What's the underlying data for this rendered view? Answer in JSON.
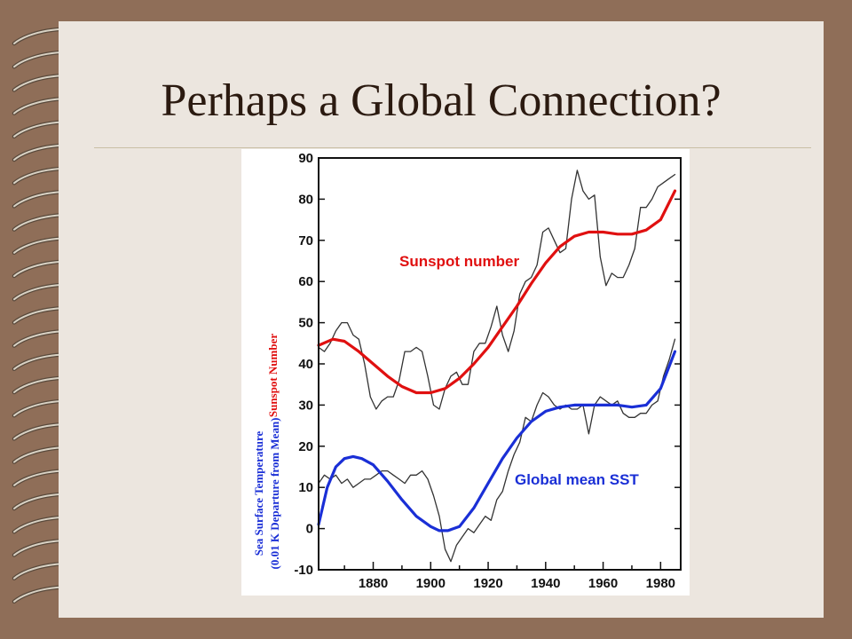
{
  "slide": {
    "title": "Perhaps a Global Connection?"
  },
  "colors": {
    "background": "#8f6e58",
    "slide": "#ece6df",
    "sunspot_smooth": "#e01010",
    "sst_smooth": "#1a2fd6",
    "raw": "#333333"
  },
  "chart_data": {
    "type": "line",
    "title": "",
    "xlabel": "",
    "ylabel_top": "Sunspot Number",
    "ylabel_bottom_line1": "Sea Surface Temperature",
    "ylabel_bottom_line2": "(0.01 K Departure from Mean)",
    "xlim": [
      1861,
      1987
    ],
    "ylim": [
      -10,
      90
    ],
    "xticks": [
      1880,
      1900,
      1920,
      1940,
      1960,
      1980
    ],
    "yticks": [
      -10,
      0,
      10,
      20,
      30,
      40,
      50,
      60,
      70,
      80,
      90
    ],
    "grid": false,
    "annotations": [
      {
        "text": "Sunspot number",
        "color": "#e01010"
      },
      {
        "text": "Global mean SST",
        "color": "#1a2fd6"
      }
    ],
    "series": [
      {
        "name": "Sunspot number",
        "style": "smooth",
        "color": "#e01010",
        "x": [
          1861,
          1866,
          1870,
          1875,
          1880,
          1885,
          1890,
          1895,
          1900,
          1905,
          1910,
          1915,
          1920,
          1925,
          1930,
          1935,
          1940,
          1945,
          1950,
          1955,
          1960,
          1965,
          1970,
          1975,
          1980,
          1985
        ],
        "y": [
          44.5,
          46,
          45.5,
          43,
          40,
          37,
          34.5,
          33,
          33,
          34,
          36.5,
          40,
          44,
          49,
          54,
          59.5,
          64.5,
          68.5,
          71,
          72,
          72,
          71.5,
          71.5,
          72.5,
          75,
          82
        ]
      },
      {
        "name": "Sunspot number (raw)",
        "style": "raw",
        "color": "#333333",
        "x": [
          1861,
          1863,
          1865,
          1867,
          1869,
          1871,
          1873,
          1875,
          1877,
          1879,
          1881,
          1883,
          1885,
          1887,
          1889,
          1891,
          1893,
          1895,
          1897,
          1899,
          1901,
          1903,
          1905,
          1907,
          1909,
          1911,
          1913,
          1915,
          1917,
          1919,
          1921,
          1923,
          1925,
          1927,
          1929,
          1931,
          1933,
          1935,
          1937,
          1939,
          1941,
          1943,
          1945,
          1947,
          1949,
          1951,
          1953,
          1955,
          1957,
          1959,
          1961,
          1963,
          1965,
          1967,
          1969,
          1971,
          1973,
          1975,
          1977,
          1979,
          1981,
          1983,
          1985
        ],
        "y": [
          44,
          43,
          45,
          48,
          50,
          50,
          47,
          46,
          40,
          32,
          29,
          31,
          32,
          32,
          36,
          43,
          43,
          44,
          43,
          37,
          30,
          29,
          34,
          37,
          38,
          35,
          35,
          43,
          45,
          45,
          49,
          54,
          47,
          43,
          48,
          57,
          60,
          61,
          64,
          72,
          73,
          70,
          67,
          68,
          80,
          87,
          82,
          80,
          81,
          66,
          59,
          62,
          61,
          61,
          64,
          68,
          78,
          78,
          80,
          83,
          84,
          85,
          86
        ]
      },
      {
        "name": "Global mean SST",
        "style": "smooth",
        "color": "#1a2fd6",
        "x": [
          1861,
          1864,
          1867,
          1870,
          1873,
          1876,
          1880,
          1885,
          1890,
          1895,
          1900,
          1903,
          1906,
          1910,
          1915,
          1920,
          1925,
          1930,
          1935,
          1940,
          1945,
          1950,
          1955,
          1960,
          1965,
          1970,
          1975,
          1980,
          1985
        ],
        "y": [
          1,
          10,
          15,
          17,
          17.5,
          17,
          15.5,
          11.5,
          7,
          3,
          0.5,
          -0.5,
          -0.5,
          0.5,
          5,
          11,
          17,
          22,
          26,
          28.5,
          29.5,
          30,
          30,
          30,
          30,
          29.5,
          30,
          34,
          43
        ]
      },
      {
        "name": "Global mean SST (raw)",
        "style": "raw",
        "color": "#333333",
        "x": [
          1861,
          1863,
          1865,
          1867,
          1869,
          1871,
          1873,
          1875,
          1877,
          1879,
          1881,
          1883,
          1885,
          1887,
          1889,
          1891,
          1893,
          1895,
          1897,
          1899,
          1901,
          1903,
          1905,
          1907,
          1909,
          1911,
          1913,
          1915,
          1917,
          1919,
          1921,
          1923,
          1925,
          1927,
          1929,
          1931,
          1933,
          1935,
          1937,
          1939,
          1941,
          1943,
          1945,
          1947,
          1949,
          1951,
          1953,
          1955,
          1957,
          1959,
          1961,
          1963,
          1965,
          1967,
          1969,
          1971,
          1973,
          1975,
          1977,
          1979,
          1981,
          1983,
          1985
        ],
        "y": [
          11,
          13,
          12,
          13,
          11,
          12,
          10,
          11,
          12,
          12,
          13,
          14,
          14,
          13,
          12,
          11,
          13,
          13,
          14,
          12,
          8,
          3,
          -5,
          -8,
          -4,
          -2,
          0,
          -1,
          1,
          3,
          2,
          7,
          9,
          14,
          18,
          21,
          27,
          26,
          30,
          33,
          32,
          30,
          29,
          30,
          29,
          29,
          30,
          23,
          30,
          32,
          31,
          30,
          31,
          28,
          27,
          27,
          28,
          28,
          30,
          31,
          37,
          41,
          46
        ]
      }
    ]
  }
}
